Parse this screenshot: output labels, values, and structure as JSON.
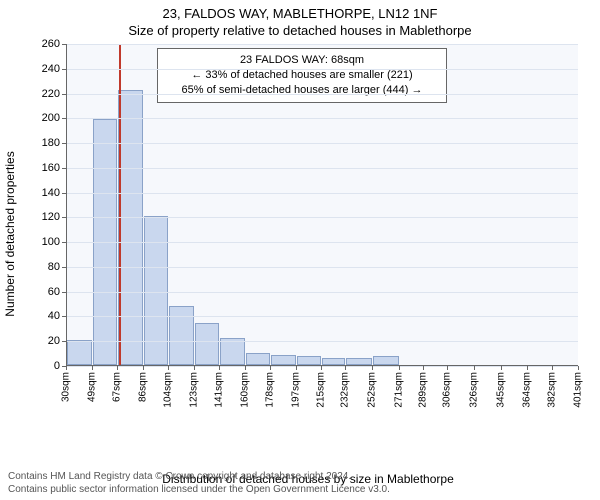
{
  "header": {
    "address": "23, FALDOS WAY, MABLETHORPE, LN12 1NF",
    "subtitle": "Size of property relative to detached houses in Mablethorpe"
  },
  "chart": {
    "type": "bar",
    "ylabel": "Number of detached properties",
    "xlabel": "Distribution of detached houses by size in Mablethorpe",
    "ylim": [
      0,
      260
    ],
    "ytick_step": 20,
    "plot_bg": "#f6f8fc",
    "grid_color": "#dde4ef",
    "bar_fill": "#c9d7ee",
    "bar_stroke": "#8aa2c8",
    "marker_color": "#c0392b",
    "marker_x": 68,
    "x_tick_values": [
      30,
      49,
      67,
      86,
      104,
      123,
      141,
      160,
      178,
      197,
      215,
      232,
      252,
      271,
      289,
      306,
      326,
      345,
      364,
      382,
      401
    ],
    "x_tick_labels": [
      "30sqm",
      "49sqm",
      "67sqm",
      "86sqm",
      "104sqm",
      "123sqm",
      "141sqm",
      "160sqm",
      "178sqm",
      "197sqm",
      "215sqm",
      "232sqm",
      "252sqm",
      "271sqm",
      "289sqm",
      "306sqm",
      "326sqm",
      "345sqm",
      "364sqm",
      "382sqm",
      "401sqm"
    ],
    "bars": [
      {
        "x0": 30,
        "x1": 49,
        "y": 20
      },
      {
        "x0": 49,
        "x1": 67,
        "y": 199
      },
      {
        "x0": 67,
        "x1": 86,
        "y": 222
      },
      {
        "x0": 86,
        "x1": 104,
        "y": 120
      },
      {
        "x0": 104,
        "x1": 123,
        "y": 48
      },
      {
        "x0": 123,
        "x1": 141,
        "y": 34
      },
      {
        "x0": 141,
        "x1": 160,
        "y": 22
      },
      {
        "x0": 160,
        "x1": 178,
        "y": 10
      },
      {
        "x0": 178,
        "x1": 197,
        "y": 8
      },
      {
        "x0": 197,
        "x1": 215,
        "y": 7
      },
      {
        "x0": 215,
        "x1": 232,
        "y": 6
      },
      {
        "x0": 232,
        "x1": 252,
        "y": 6
      },
      {
        "x0": 252,
        "x1": 271,
        "y": 7
      }
    ],
    "annotation": {
      "line1": "23 FALDOS WAY: 68sqm",
      "line2": "← 33% of detached houses are smaller (221)",
      "line3": "65% of semi-detached houses are larger (444) →"
    }
  },
  "footer": {
    "line1": "Contains HM Land Registry data © Crown copyright and database right 2024.",
    "line2": "Contains public sector information licensed under the Open Government Licence v3.0."
  }
}
